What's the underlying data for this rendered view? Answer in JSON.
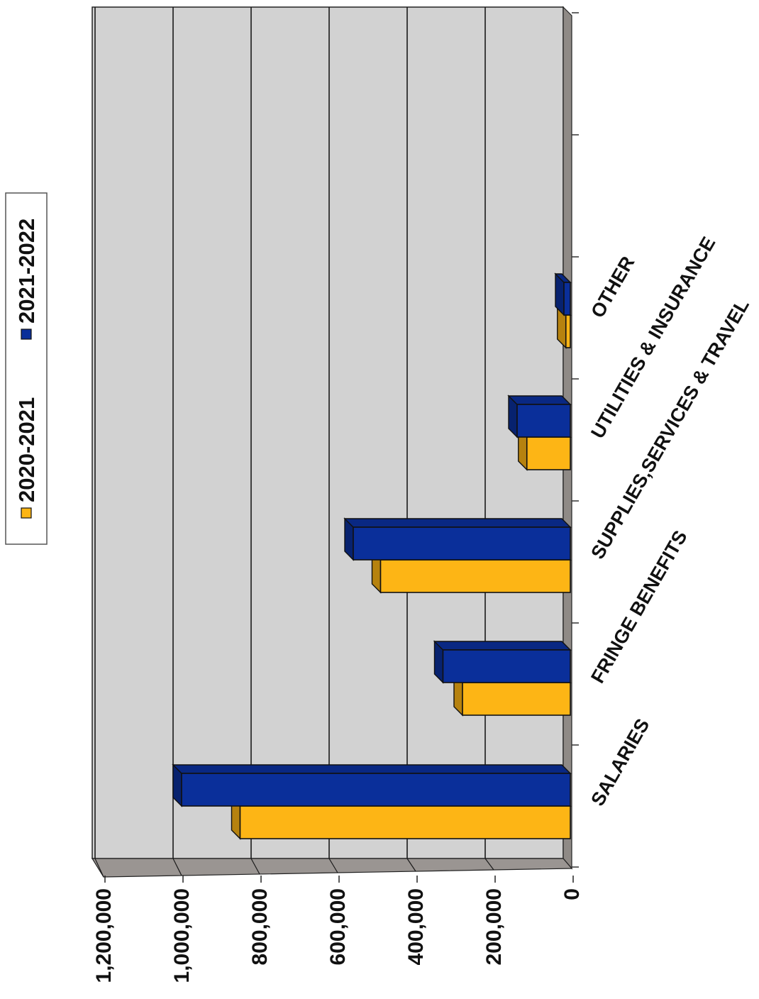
{
  "chart_data": {
    "type": "bar",
    "orientation": "3d-horizontal-bar, page rotated 90 degrees counter-clockwise",
    "categories": [
      "SALARIES",
      "FRINGE BENEFITS",
      "SUPPLIES,SERVICES & TRAVEL",
      "UTILITIES & INSURANCE",
      "OTHER"
    ],
    "series": [
      {
        "name": "2020-2021",
        "color": "#FDB515",
        "values": [
          850000,
          280000,
          490000,
          115000,
          15000
        ]
      },
      {
        "name": "2021-2022",
        "color": "#0A2F9A",
        "values": [
          1000000,
          330000,
          560000,
          140000,
          20000
        ]
      }
    ],
    "value_axis": {
      "min": 0,
      "max": 1200000,
      "tick_labels": [
        "0",
        "200,000",
        "400,000",
        "600,000",
        "800,000",
        "1,000,000",
        "1,200,000"
      ]
    },
    "grid": true,
    "legend_position": "top"
  }
}
